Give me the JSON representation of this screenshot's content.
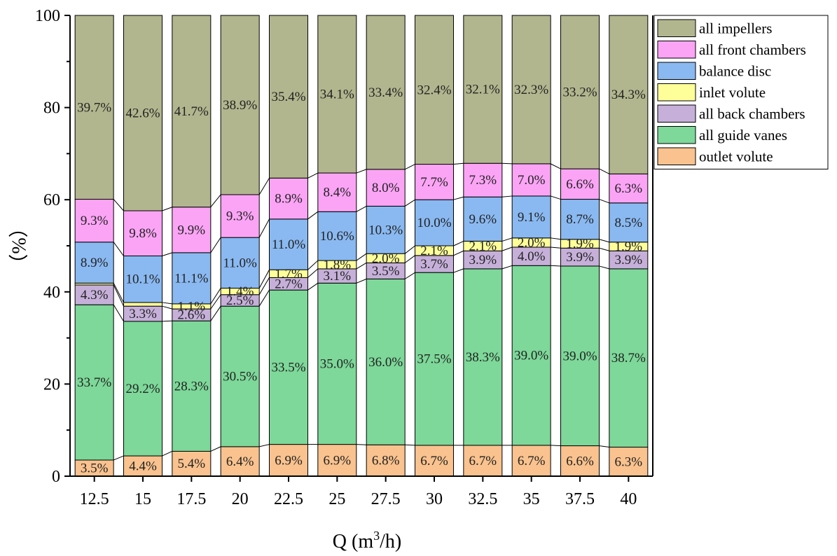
{
  "chart_data": {
    "type": "bar",
    "stacked": true,
    "title": "",
    "xlabel": "Q (m",
    "xlabel_sup": "3",
    "xlabel_tail": "/h)",
    "ylabel": "（%）",
    "ylim": [
      0,
      100
    ],
    "yticks": [
      "0",
      "20",
      "40",
      "60",
      "80",
      "100"
    ],
    "categories": [
      "12.5",
      "15",
      "17.5",
      "20",
      "22.5",
      "25",
      "27.5",
      "30",
      "32.5",
      "35",
      "37.5",
      "40"
    ],
    "legend_position": "top-right",
    "series": [
      {
        "name": "outlet volute",
        "color": "#F9C28E",
        "values": [
          3.5,
          4.4,
          5.4,
          6.4,
          6.9,
          6.9,
          6.8,
          6.7,
          6.7,
          6.7,
          6.6,
          6.3
        ],
        "labels": [
          "3.5%",
          "4.4%",
          "5.4%",
          "6.4%",
          "6.9%",
          "6.9%",
          "6.8%",
          "6.7%",
          "6.7%",
          "6.7%",
          "6.6%",
          "6.3%"
        ]
      },
      {
        "name": "all guide vanes",
        "color": "#7DD899",
        "values": [
          33.7,
          29.2,
          28.3,
          30.5,
          33.5,
          35.0,
          36.0,
          37.5,
          38.3,
          39.0,
          39.0,
          38.7
        ],
        "labels": [
          "33.7%",
          "29.2%",
          "28.3%",
          "30.5%",
          "33.5%",
          "35.0%",
          "36.0%",
          "37.5%",
          "38.3%",
          "39.0%",
          "39.0%",
          "38.7%"
        ]
      },
      {
        "name": "all back chambers",
        "color": "#C6B0D9",
        "values": [
          4.3,
          3.3,
          2.6,
          2.5,
          2.7,
          3.1,
          3.5,
          3.7,
          3.9,
          4.0,
          3.9,
          3.9
        ],
        "labels": [
          "4.3%",
          "3.3%",
          "2.6%",
          "2.5%",
          "2.7%",
          "3.1%",
          "3.5%",
          "3.7%",
          "3.9%",
          "4.0%",
          "3.9%",
          "3.9%"
        ]
      },
      {
        "name": "inlet volute",
        "color": "#FFFF9A",
        "values": [
          0.4,
          0.8,
          1.1,
          1.4,
          1.7,
          1.8,
          2.0,
          2.1,
          2.1,
          2.0,
          1.9,
          1.9
        ],
        "labels": [
          "",
          "",
          "1.1%",
          "1.4%",
          "1.7%",
          "1.8%",
          "2.0%",
          "2.1%",
          "2.1%",
          "2.0%",
          "1.9%",
          "1.9%"
        ]
      },
      {
        "name": "balance disc",
        "color": "#8AB9F1",
        "values": [
          8.9,
          10.1,
          11.1,
          11.0,
          11.0,
          10.6,
          10.3,
          10.0,
          9.6,
          9.1,
          8.7,
          8.5
        ],
        "labels": [
          "8.9%",
          "10.1%",
          "11.1%",
          "11.0%",
          "11.0%",
          "10.6%",
          "10.3%",
          "10.0%",
          "9.6%",
          "9.1%",
          "8.7%",
          "8.5%"
        ]
      },
      {
        "name": "all front chambers",
        "color": "#FBA4F5",
        "values": [
          9.3,
          9.8,
          9.9,
          9.3,
          8.9,
          8.4,
          8.0,
          7.7,
          7.3,
          7.0,
          6.6,
          6.3
        ],
        "labels": [
          "9.3%",
          "9.8%",
          "9.9%",
          "9.3%",
          "8.9%",
          "8.4%",
          "8.0%",
          "7.7%",
          "7.3%",
          "7.0%",
          "6.6%",
          "6.3%"
        ]
      },
      {
        "name": "all impellers",
        "color": "#B2B68E",
        "values": [
          39.7,
          42.6,
          41.7,
          38.9,
          35.4,
          34.1,
          33.4,
          32.4,
          32.1,
          32.3,
          33.2,
          34.3
        ],
        "labels": [
          "39.7%",
          "42.6%",
          "41.7%",
          "38.9%",
          "35.4%",
          "34.1%",
          "33.4%",
          "32.4%",
          "32.1%",
          "32.3%",
          "33.2%",
          "34.3%"
        ]
      }
    ],
    "legend_order": [
      "all impellers",
      "all front chambers",
      "balance disc",
      "inlet volute",
      "all back chambers",
      "all guide vanes",
      "outlet volute"
    ]
  }
}
